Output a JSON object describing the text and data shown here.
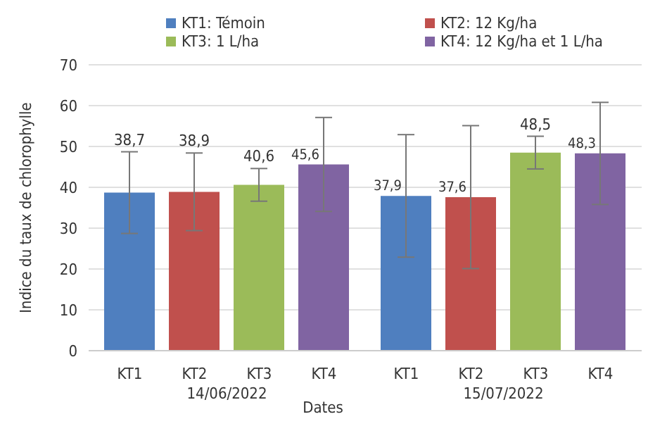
{
  "chart_data": {
    "type": "bar",
    "xlabel": "Dates",
    "ylabel": "Indice du taux de chlorophylle",
    "categories": [
      "14/06/2022",
      "15/07/2022"
    ],
    "series": [
      {
        "name": "KT1: Témoin",
        "color": "#4f7fbf",
        "values": [
          38.7,
          37.9
        ],
        "errors": [
          10,
          15
        ],
        "value_labels": [
          "38,7",
          "37,9"
        ]
      },
      {
        "name": "KT2: 12 Kg/ha",
        "color": "#c0504d",
        "values": [
          38.9,
          37.6
        ],
        "errors": [
          9.5,
          17.5
        ],
        "value_labels": [
          "38,9",
          "37,6"
        ]
      },
      {
        "name": "KT3: 1 L/ha",
        "color": "#9bbb59",
        "values": [
          40.6,
          48.5
        ],
        "errors": [
          4,
          4
        ],
        "value_labels": [
          "40,6",
          "48,5"
        ]
      },
      {
        "name": "KT4: 12 Kg/ha et 1 L/ha",
        "color": "#8064a2",
        "values": [
          45.6,
          48.3
        ],
        "errors": [
          11.5,
          12.5
        ],
        "value_labels": [
          "45,6",
          "48,3"
        ]
      }
    ],
    "annotations": [
      "KT1",
      "KT2",
      "KT3",
      "KT4",
      "KT1",
      "KT2",
      "KT3",
      "KT4"
    ],
    "ylim": [
      0,
      70
    ],
    "yticks": [
      0,
      10,
      20,
      30,
      40,
      50,
      60,
      70
    ],
    "grid": "y",
    "legend": "top"
  }
}
